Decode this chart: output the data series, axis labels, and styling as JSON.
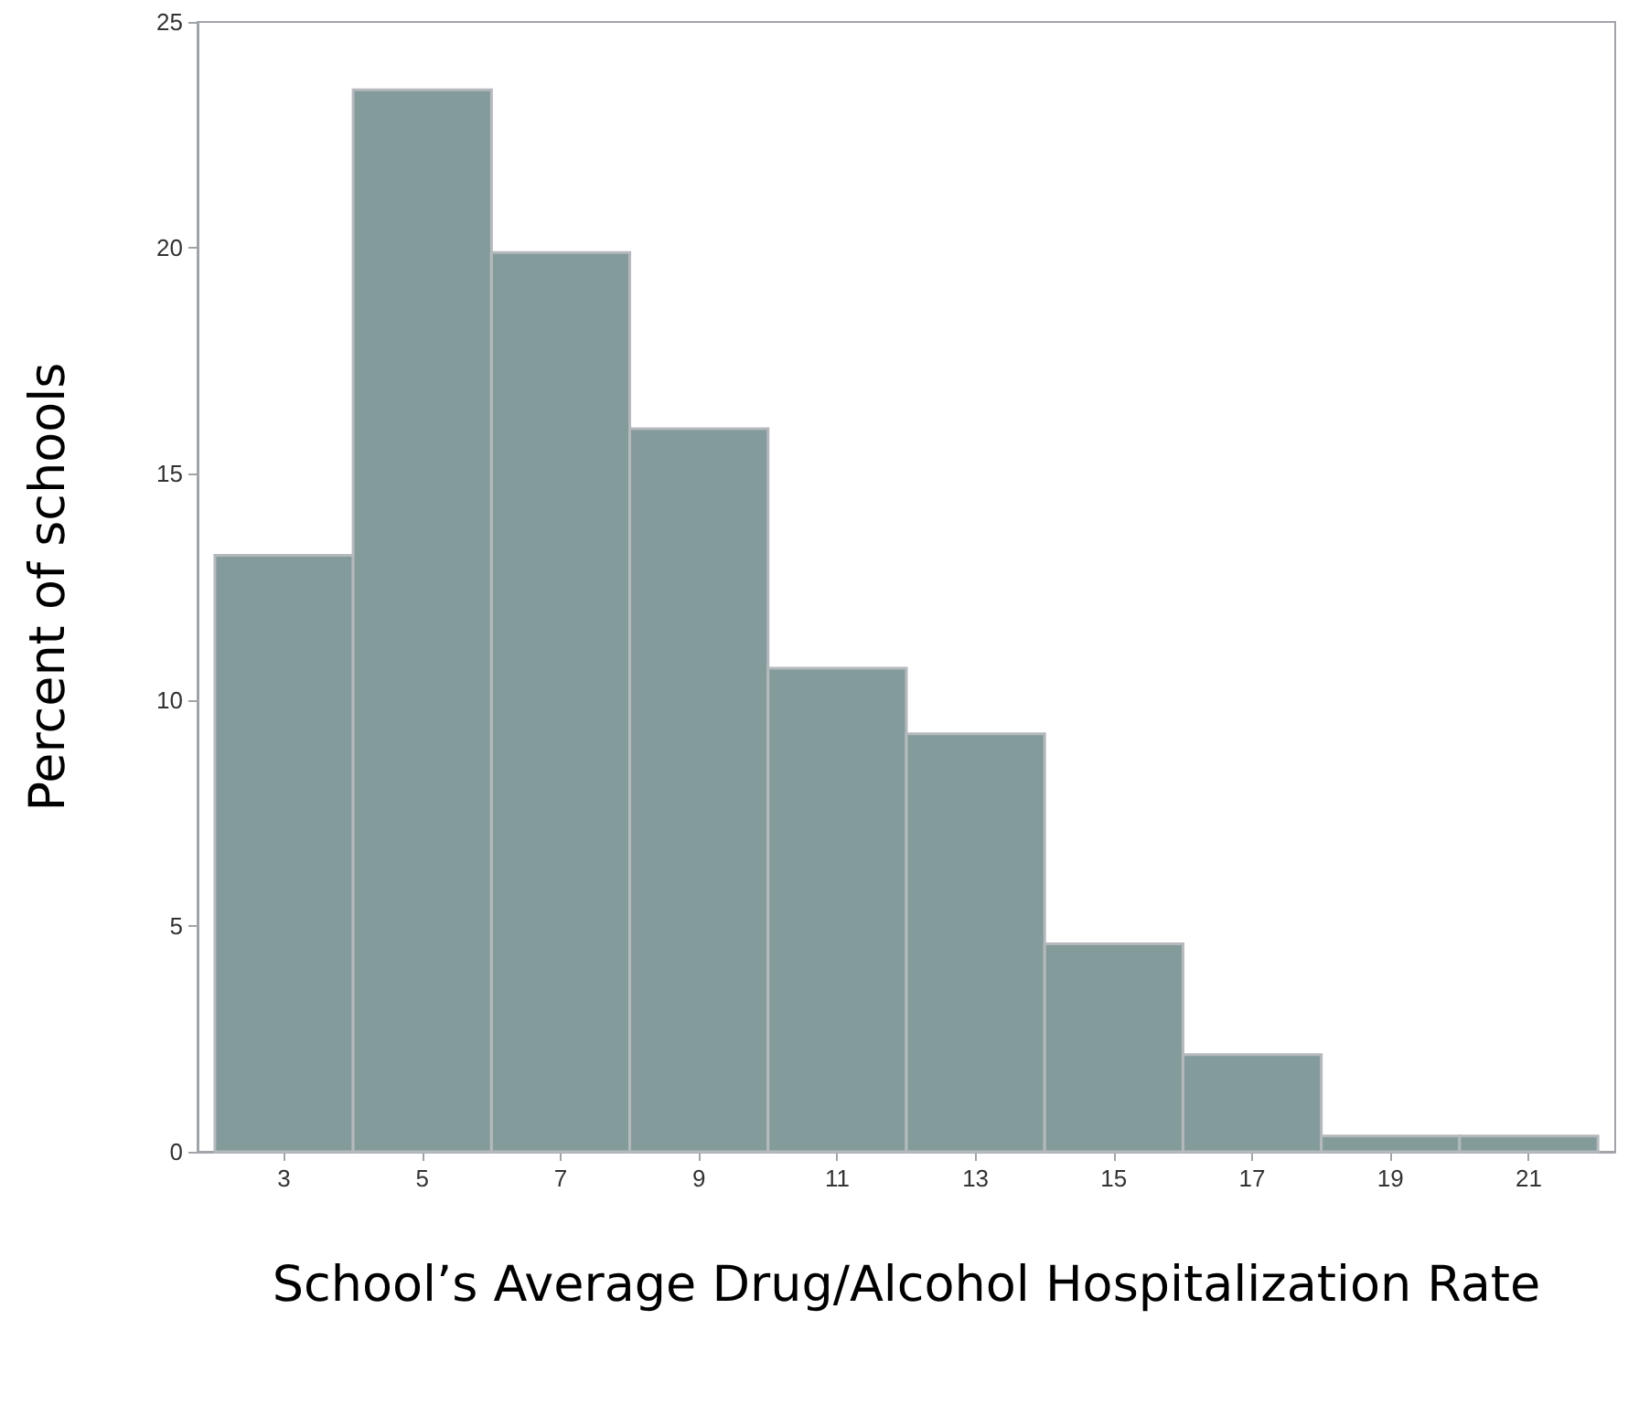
{
  "chart_data": {
    "type": "histogram",
    "xlabel": "School’s Average Drug/Alcohol Hospitalization Rate",
    "ylabel": "Percent of schools",
    "bins": [
      2,
      4,
      6,
      8,
      10,
      12,
      14,
      16,
      18,
      20,
      22
    ],
    "values": [
      13.2,
      23.5,
      19.9,
      16.0,
      10.7,
      9.25,
      4.6,
      2.15,
      0.35,
      0.35
    ],
    "color": "#839b9b",
    "xlim": [
      1.75,
      22.25
    ],
    "xticks": [
      3,
      5,
      7,
      9,
      11,
      13,
      15,
      17,
      19,
      21
    ],
    "ylim": [
      0,
      25
    ],
    "yticks": [
      0,
      5,
      10,
      15,
      20,
      25
    ]
  }
}
